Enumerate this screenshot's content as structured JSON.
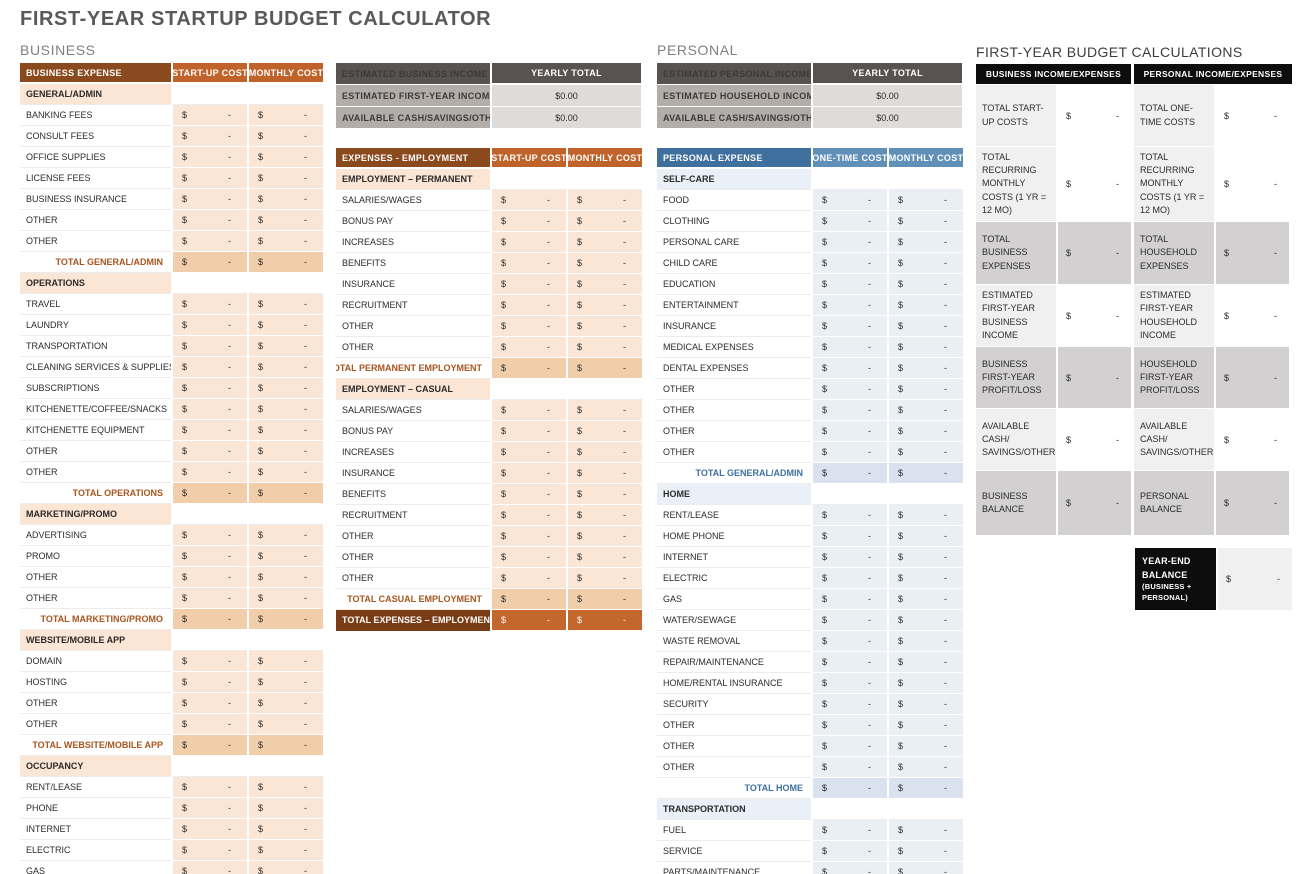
{
  "title": "FIRST-YEAR STARTUP BUDGET CALCULATOR",
  "symbols": {
    "dollar": "$",
    "dash": "-"
  },
  "colors": {
    "title_gray": "#595959",
    "brown_header_dark": "#8a4a1e",
    "brown_header_light": "#bf632b",
    "peach_light": "#fbe5d4",
    "peach_total": "#f2cda9",
    "grand_label_brown": "#7a3c15",
    "grand_value_orange": "#c4672d",
    "blue_header_dark": "#3f6f9c",
    "blue_header_light": "#6090b8",
    "blue_light": "#eaeff6",
    "blue_total": "#d9e2ee",
    "gray_header": "#585350",
    "gray_label": "#b3adaa",
    "gray_value": "#dedcda",
    "calc_black": "#0d0d0d",
    "calc_light": "#f1f0f0",
    "calc_gray": "#d2d0d0"
  },
  "business": {
    "label": "BUSINESS",
    "expense_table": {
      "headers": [
        "BUSINESS EXPENSE",
        "START-UP COST",
        "MONTHLY COST"
      ],
      "rows": [
        {
          "t": "section",
          "label": "GENERAL/ADMIN"
        },
        {
          "t": "item",
          "label": "BANKING FEES"
        },
        {
          "t": "item",
          "label": "CONSULT FEES"
        },
        {
          "t": "item",
          "label": "OFFICE SUPPLIES"
        },
        {
          "t": "item",
          "label": "LICENSE FEES"
        },
        {
          "t": "item",
          "label": "BUSINESS INSURANCE"
        },
        {
          "t": "item",
          "label": "OTHER"
        },
        {
          "t": "item",
          "label": "OTHER"
        },
        {
          "t": "total",
          "label": "TOTAL GENERAL/ADMIN"
        },
        {
          "t": "section",
          "label": "OPERATIONS"
        },
        {
          "t": "item",
          "label": "TRAVEL"
        },
        {
          "t": "item",
          "label": "LAUNDRY"
        },
        {
          "t": "item",
          "label": "TRANSPORTATION"
        },
        {
          "t": "item",
          "label": "CLEANING SERVICES & SUPPLIES"
        },
        {
          "t": "item",
          "label": "SUBSCRIPTIONS"
        },
        {
          "t": "item",
          "label": "KITCHENETTE/COFFEE/SNACKS"
        },
        {
          "t": "item",
          "label": "KITCHENETTE EQUIPMENT"
        },
        {
          "t": "item",
          "label": "OTHER"
        },
        {
          "t": "item",
          "label": "OTHER"
        },
        {
          "t": "total",
          "label": "TOTAL OPERATIONS"
        },
        {
          "t": "section",
          "label": "MARKETING/PROMO"
        },
        {
          "t": "item",
          "label": "ADVERTISING"
        },
        {
          "t": "item",
          "label": "PROMO"
        },
        {
          "t": "item",
          "label": "OTHER"
        },
        {
          "t": "item",
          "label": "OTHER"
        },
        {
          "t": "total",
          "label": "TOTAL MARKETING/PROMO"
        },
        {
          "t": "section",
          "label": "WEBSITE/MOBILE APP"
        },
        {
          "t": "item",
          "label": "DOMAIN"
        },
        {
          "t": "item",
          "label": "HOSTING"
        },
        {
          "t": "item",
          "label": "OTHER"
        },
        {
          "t": "item",
          "label": "OTHER"
        },
        {
          "t": "total",
          "label": "TOTAL WEBSITE/MOBILE APP"
        },
        {
          "t": "section",
          "label": "OCCUPANCY"
        },
        {
          "t": "item",
          "label": "RENT/LEASE"
        },
        {
          "t": "item",
          "label": "PHONE"
        },
        {
          "t": "item",
          "label": "INTERNET"
        },
        {
          "t": "item",
          "label": "ELECTRIC"
        },
        {
          "t": "item",
          "label": "GAS"
        }
      ]
    },
    "income_table": {
      "headers": [
        "ESTIMATED BUSINESS INCOME",
        "YEARLY TOTAL"
      ],
      "rows": [
        {
          "label": "ESTIMATED FIRST-YEAR INCOME",
          "value": "$0.00"
        },
        {
          "label": "AVAILABLE CASH/SAVINGS/OTHER",
          "value": "$0.00"
        }
      ]
    },
    "employment_table": {
      "headers": [
        "EXPENSES - EMPLOYMENT",
        "START-UP COST",
        "MONTHLY COST"
      ],
      "rows": [
        {
          "t": "section",
          "label": "EMPLOYMENT – PERMANENT"
        },
        {
          "t": "item",
          "label": "SALARIES/WAGES"
        },
        {
          "t": "item",
          "label": "BONUS PAY"
        },
        {
          "t": "item",
          "label": "INCREASES"
        },
        {
          "t": "item",
          "label": "BENEFITS"
        },
        {
          "t": "item",
          "label": "INSURANCE"
        },
        {
          "t": "item",
          "label": "RECRUITMENT"
        },
        {
          "t": "item",
          "label": "OTHER"
        },
        {
          "t": "item",
          "label": "OTHER"
        },
        {
          "t": "total",
          "label": "TOTAL PERMANENT EMPLOYMENT"
        },
        {
          "t": "section",
          "label": "EMPLOYMENT – CASUAL"
        },
        {
          "t": "item",
          "label": "SALARIES/WAGES"
        },
        {
          "t": "item",
          "label": "BONUS PAY"
        },
        {
          "t": "item",
          "label": "INCREASES"
        },
        {
          "t": "item",
          "label": "INSURANCE"
        },
        {
          "t": "item",
          "label": "BENEFITS"
        },
        {
          "t": "item",
          "label": "RECRUITMENT"
        },
        {
          "t": "item",
          "label": "OTHER"
        },
        {
          "t": "item",
          "label": "OTHER"
        },
        {
          "t": "item",
          "label": "OTHER"
        },
        {
          "t": "total",
          "label": "TOTAL CASUAL EMPLOYMENT"
        },
        {
          "t": "grand",
          "label": "TOTAL EXPENSES – EMPLOYMENT"
        }
      ]
    }
  },
  "personal": {
    "label": "PERSONAL",
    "income_table": {
      "headers": [
        "ESTIMATED PERSONAL INCOME",
        "YEARLY TOTAL"
      ],
      "rows": [
        {
          "label": "ESTIMATED HOUSEHOLD INCOME",
          "value": "$0.00"
        },
        {
          "label": "AVAILABLE CASH/SAVINGS/OTHER",
          "value": "$0.00"
        }
      ]
    },
    "expense_table": {
      "headers": [
        "PERSONAL EXPENSE",
        "ONE-TIME COST",
        "MONTHLY COST"
      ],
      "rows": [
        {
          "t": "section",
          "label": "SELF-CARE"
        },
        {
          "t": "item",
          "label": "FOOD"
        },
        {
          "t": "item",
          "label": "CLOTHING"
        },
        {
          "t": "item",
          "label": "PERSONAL CARE"
        },
        {
          "t": "item",
          "label": "CHILD CARE"
        },
        {
          "t": "item",
          "label": "EDUCATION"
        },
        {
          "t": "item",
          "label": "ENTERTAINMENT"
        },
        {
          "t": "item",
          "label": "INSURANCE"
        },
        {
          "t": "item",
          "label": "MEDICAL EXPENSES"
        },
        {
          "t": "item",
          "label": "DENTAL EXPENSES"
        },
        {
          "t": "item",
          "label": "OTHER"
        },
        {
          "t": "item",
          "label": "OTHER"
        },
        {
          "t": "item",
          "label": "OTHER"
        },
        {
          "t": "item",
          "label": "OTHER"
        },
        {
          "t": "total",
          "label": "TOTAL GENERAL/ADMIN"
        },
        {
          "t": "section",
          "label": "HOME"
        },
        {
          "t": "item",
          "label": "RENT/LEASE"
        },
        {
          "t": "item",
          "label": "HOME PHONE"
        },
        {
          "t": "item",
          "label": "INTERNET"
        },
        {
          "t": "item",
          "label": "ELECTRIC"
        },
        {
          "t": "item",
          "label": "GAS"
        },
        {
          "t": "item",
          "label": "WATER/SEWAGE"
        },
        {
          "t": "item",
          "label": "WASTE REMOVAL"
        },
        {
          "t": "item",
          "label": "REPAIR/MAINTENANCE"
        },
        {
          "t": "item",
          "label": "HOME/RENTAL INSURANCE"
        },
        {
          "t": "item",
          "label": "SECURITY"
        },
        {
          "t": "item",
          "label": "OTHER"
        },
        {
          "t": "item",
          "label": "OTHER"
        },
        {
          "t": "item",
          "label": "OTHER"
        },
        {
          "t": "total",
          "label": "TOTAL HOME"
        },
        {
          "t": "section",
          "label": "TRANSPORTATION"
        },
        {
          "t": "item",
          "label": "FUEL"
        },
        {
          "t": "item",
          "label": "SERVICE"
        },
        {
          "t": "item",
          "label": "PARTS/MAINTENANCE"
        }
      ]
    }
  },
  "calculations": {
    "title": "FIRST-YEAR BUDGET CALCULATIONS",
    "business_panel": {
      "header": "BUSINESS INCOME/EXPENSES",
      "rows": [
        {
          "shade": "light",
          "label": "TOTAL START-UP COSTS"
        },
        {
          "shade": "light",
          "label": "TOTAL RECURRING MONTHLY COSTS (1 YR = 12 MO)"
        },
        {
          "shade": "gray",
          "label": "TOTAL BUSINESS EXPENSES"
        },
        {
          "shade": "light",
          "label": "ESTIMATED FIRST-YEAR BUSINESS INCOME"
        },
        {
          "shade": "gray",
          "label": "BUSINESS FIRST-YEAR PROFIT/LOSS"
        },
        {
          "shade": "light",
          "label": "AVAILABLE CASH/ SAVINGS/OTHER"
        },
        {
          "shade": "gray",
          "label": "BUSINESS BALANCE"
        }
      ]
    },
    "personal_panel": {
      "header": "PERSONAL INCOME/EXPENSES",
      "rows": [
        {
          "shade": "light",
          "label": "TOTAL ONE-TIME COSTS"
        },
        {
          "shade": "light",
          "label": "TOTAL RECURRING MONTHLY COSTS (1 YR = 12 MO)"
        },
        {
          "shade": "gray",
          "label": "TOTAL HOUSEHOLD EXPENSES"
        },
        {
          "shade": "light",
          "label": "ESTIMATED FIRST-YEAR HOUSEHOLD INCOME"
        },
        {
          "shade": "gray",
          "label": "HOUSEHOLD FIRST-YEAR PROFIT/LOSS"
        },
        {
          "shade": "light",
          "label": "AVAILABLE CASH/ SAVINGS/OTHER"
        },
        {
          "shade": "gray",
          "label": "PERSONAL BALANCE"
        }
      ]
    },
    "year_end": {
      "label": "YEAR-END BALANCE",
      "sublabel": "(BUSINESS + PERSONAL)"
    }
  }
}
